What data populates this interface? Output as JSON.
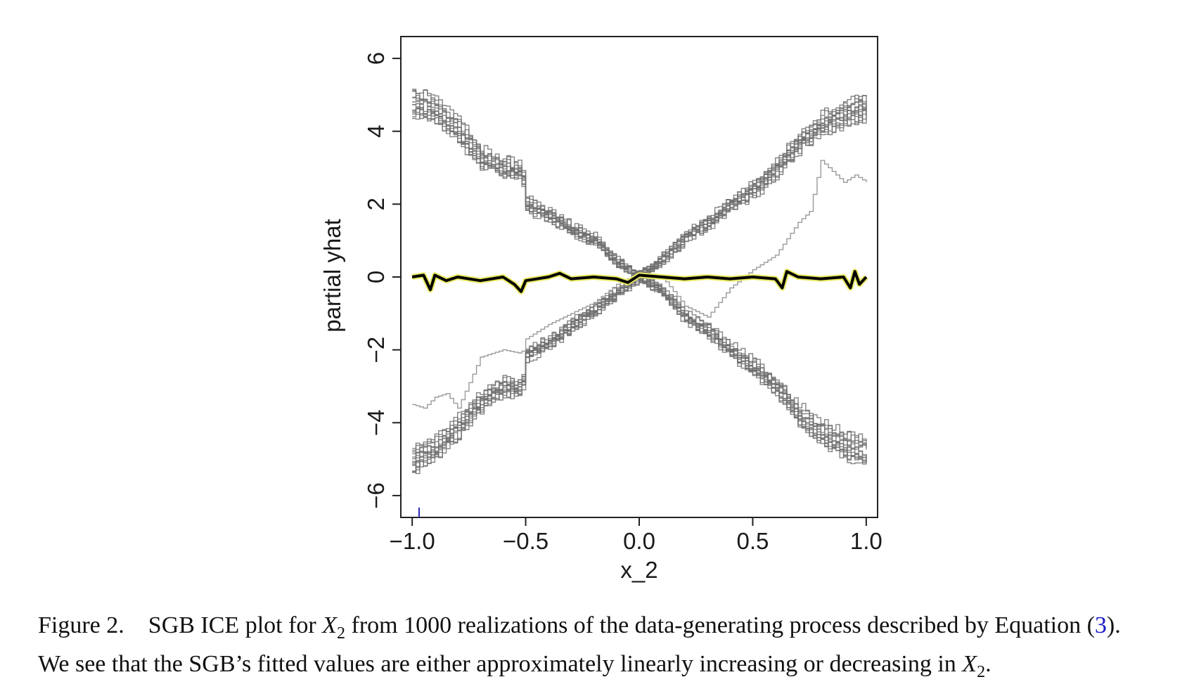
{
  "chart_data": {
    "type": "line",
    "title": "",
    "xlabel": "x_2",
    "ylabel": "partial yhat",
    "xlim": [
      -1.05,
      1.05
    ],
    "ylim": [
      -6.6,
      6.6
    ],
    "xticks": [
      -1.0,
      -0.5,
      0.0,
      0.5,
      1.0
    ],
    "xtick_labels": [
      "−1.0",
      "−0.5",
      "0.0",
      "0.5",
      "1.0"
    ],
    "yticks": [
      -6,
      -4,
      -2,
      0,
      2,
      4,
      6
    ],
    "ytick_labels": [
      "−6",
      "−4",
      "−2",
      "0",
      "2",
      "4",
      "6"
    ],
    "grid": false,
    "ice_curve_color": "#6e6e6e",
    "pd_line_color": "#000000",
    "pd_halo_color": "#e8e860",
    "series": [
      {
        "group": "decreasing ICE curves",
        "x": [
          -1.0,
          -0.9,
          -0.8,
          -0.7,
          -0.6,
          -0.52,
          -0.5,
          -0.4,
          -0.3,
          -0.2,
          -0.1,
          0.0,
          0.1,
          0.2,
          0.3,
          0.4,
          0.5,
          0.6,
          0.7,
          0.8,
          0.9,
          1.0
        ],
        "y": [
          4.8,
          4.6,
          4.0,
          3.3,
          3.0,
          2.9,
          2.0,
          1.7,
          1.3,
          1.0,
          0.4,
          0.0,
          -0.4,
          -1.1,
          -1.5,
          -2.0,
          -2.5,
          -3.0,
          -3.8,
          -4.3,
          -4.6,
          -4.8
        ]
      },
      {
        "group": "increasing ICE curves",
        "x": [
          -1.0,
          -0.9,
          -0.8,
          -0.7,
          -0.6,
          -0.52,
          -0.5,
          -0.4,
          -0.3,
          -0.2,
          -0.1,
          0.0,
          0.1,
          0.2,
          0.3,
          0.4,
          0.5,
          0.6,
          0.7,
          0.8,
          0.9,
          1.0
        ],
        "y": [
          -5.0,
          -4.7,
          -4.1,
          -3.4,
          -3.0,
          -3.0,
          -2.1,
          -1.8,
          -1.3,
          -0.9,
          -0.4,
          0.0,
          0.5,
          1.1,
          1.5,
          2.0,
          2.4,
          3.0,
          3.7,
          4.2,
          4.5,
          4.7
        ]
      },
      {
        "group": "outlier increasing ICE curve",
        "x": [
          -1.0,
          -0.95,
          -0.9,
          -0.85,
          -0.8,
          -0.7,
          -0.6,
          -0.52,
          -0.5,
          -0.4,
          -0.3,
          -0.2,
          -0.1,
          0.0,
          0.1,
          0.2,
          0.3,
          0.4,
          0.5,
          0.6,
          0.7,
          0.75,
          0.8,
          0.85,
          0.9,
          0.95,
          1.0
        ],
        "y": [
          -3.5,
          -3.6,
          -3.3,
          -3.2,
          -3.6,
          -2.2,
          -2.0,
          -2.1,
          -1.7,
          -1.3,
          -1.0,
          -0.7,
          -0.2,
          0.1,
          0.0,
          -0.8,
          -1.1,
          -0.3,
          0.2,
          0.6,
          1.5,
          1.8,
          3.2,
          2.9,
          2.6,
          2.8,
          2.6
        ]
      },
      {
        "group": "partial dependence",
        "x": [
          -1.0,
          -0.95,
          -0.92,
          -0.9,
          -0.85,
          -0.8,
          -0.7,
          -0.6,
          -0.55,
          -0.52,
          -0.5,
          -0.4,
          -0.35,
          -0.3,
          -0.2,
          -0.1,
          -0.05,
          0.0,
          0.1,
          0.2,
          0.3,
          0.4,
          0.5,
          0.6,
          0.63,
          0.65,
          0.7,
          0.8,
          0.9,
          0.93,
          0.95,
          0.97,
          1.0
        ],
        "y": [
          0.0,
          0.05,
          -0.35,
          0.05,
          -0.1,
          0.0,
          -0.1,
          0.0,
          -0.2,
          -0.4,
          -0.1,
          0.0,
          0.1,
          -0.05,
          0.0,
          -0.05,
          -0.15,
          0.05,
          0.0,
          -0.05,
          0.0,
          -0.05,
          0.0,
          -0.05,
          -0.3,
          0.15,
          0.0,
          -0.05,
          0.0,
          -0.3,
          0.15,
          -0.2,
          0.0
        ]
      }
    ]
  },
  "caption": {
    "figure_number": "Figure 2.",
    "text_part1": "SGB ICE plot for ",
    "var_letter": "X",
    "var_sub": "2",
    "text_part2": " from 1000 realizations of the data-generating process described by Equation (",
    "equation_ref": "3",
    "text_part3": ").",
    "line2_part1": "We see that the SGB’s fitted values are either approximately linearly increasing or decreasing in ",
    "line2_var_letter": "X",
    "line2_var_sub": "2",
    "line2_end": "."
  }
}
